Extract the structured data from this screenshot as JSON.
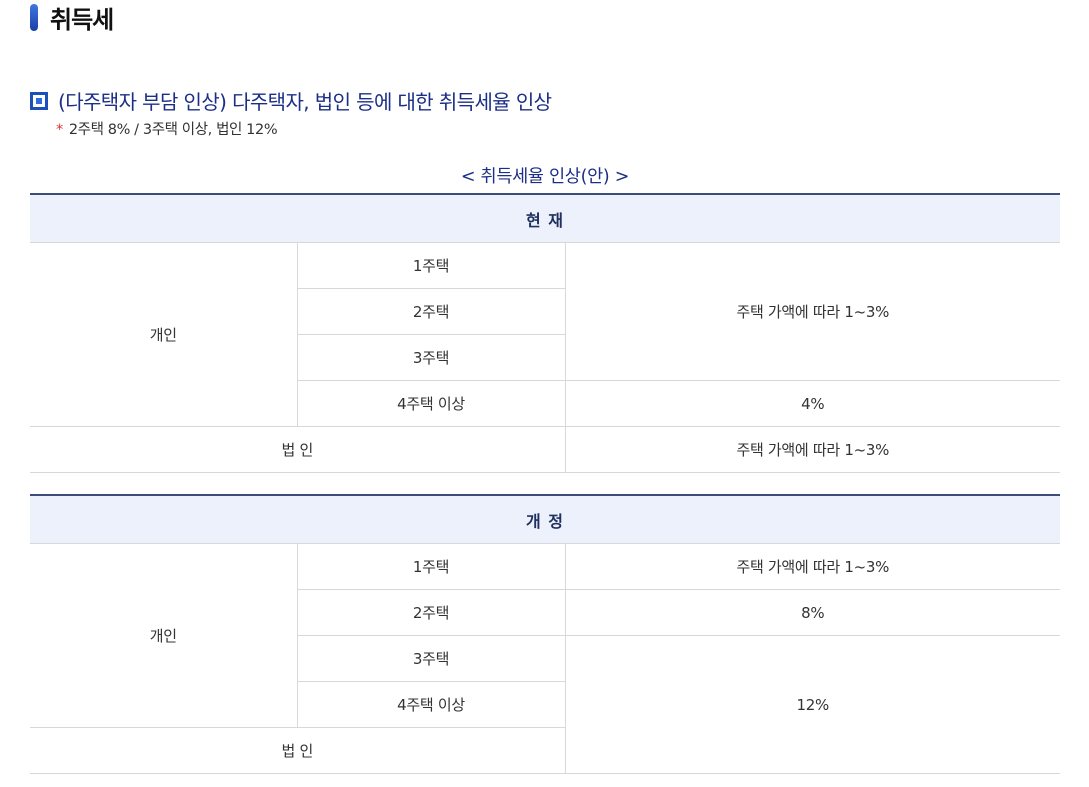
{
  "page": {
    "title": "취득세"
  },
  "section": {
    "heading": "(다주택자 부담 인상) 다주택자, 법인 등에 대한 취득세율 인상",
    "note_mark": "*",
    "note": "2주택 8% / 3주택 이상, 법인 12%"
  },
  "caption": "< 취득세율 인상(안) >",
  "current": {
    "header": "현 재",
    "individual": "개인",
    "corporation": "법 인",
    "rows": [
      "1주택",
      "2주택",
      "3주택",
      "4주택 이상"
    ],
    "rate_1to3": "주택 가액에 따라 1~3%",
    "rate_4plus": "4%",
    "rate_corp": "주택 가액에 따라 1~3%"
  },
  "revised": {
    "header": "개 정",
    "individual": "개인",
    "corporation": "법 인",
    "rows": [
      "1주택",
      "2주택",
      "3주택",
      "4주택 이상"
    ],
    "rate_1": "주택 가액에 따라 1~3%",
    "rate_2": "8%",
    "rate_3plus_corp": "12%"
  },
  "colors": {
    "accent": "#1b2f86",
    "header_bg": "#edf1fb",
    "header_border": "#3d4d7a",
    "note_star": "#e03030"
  }
}
